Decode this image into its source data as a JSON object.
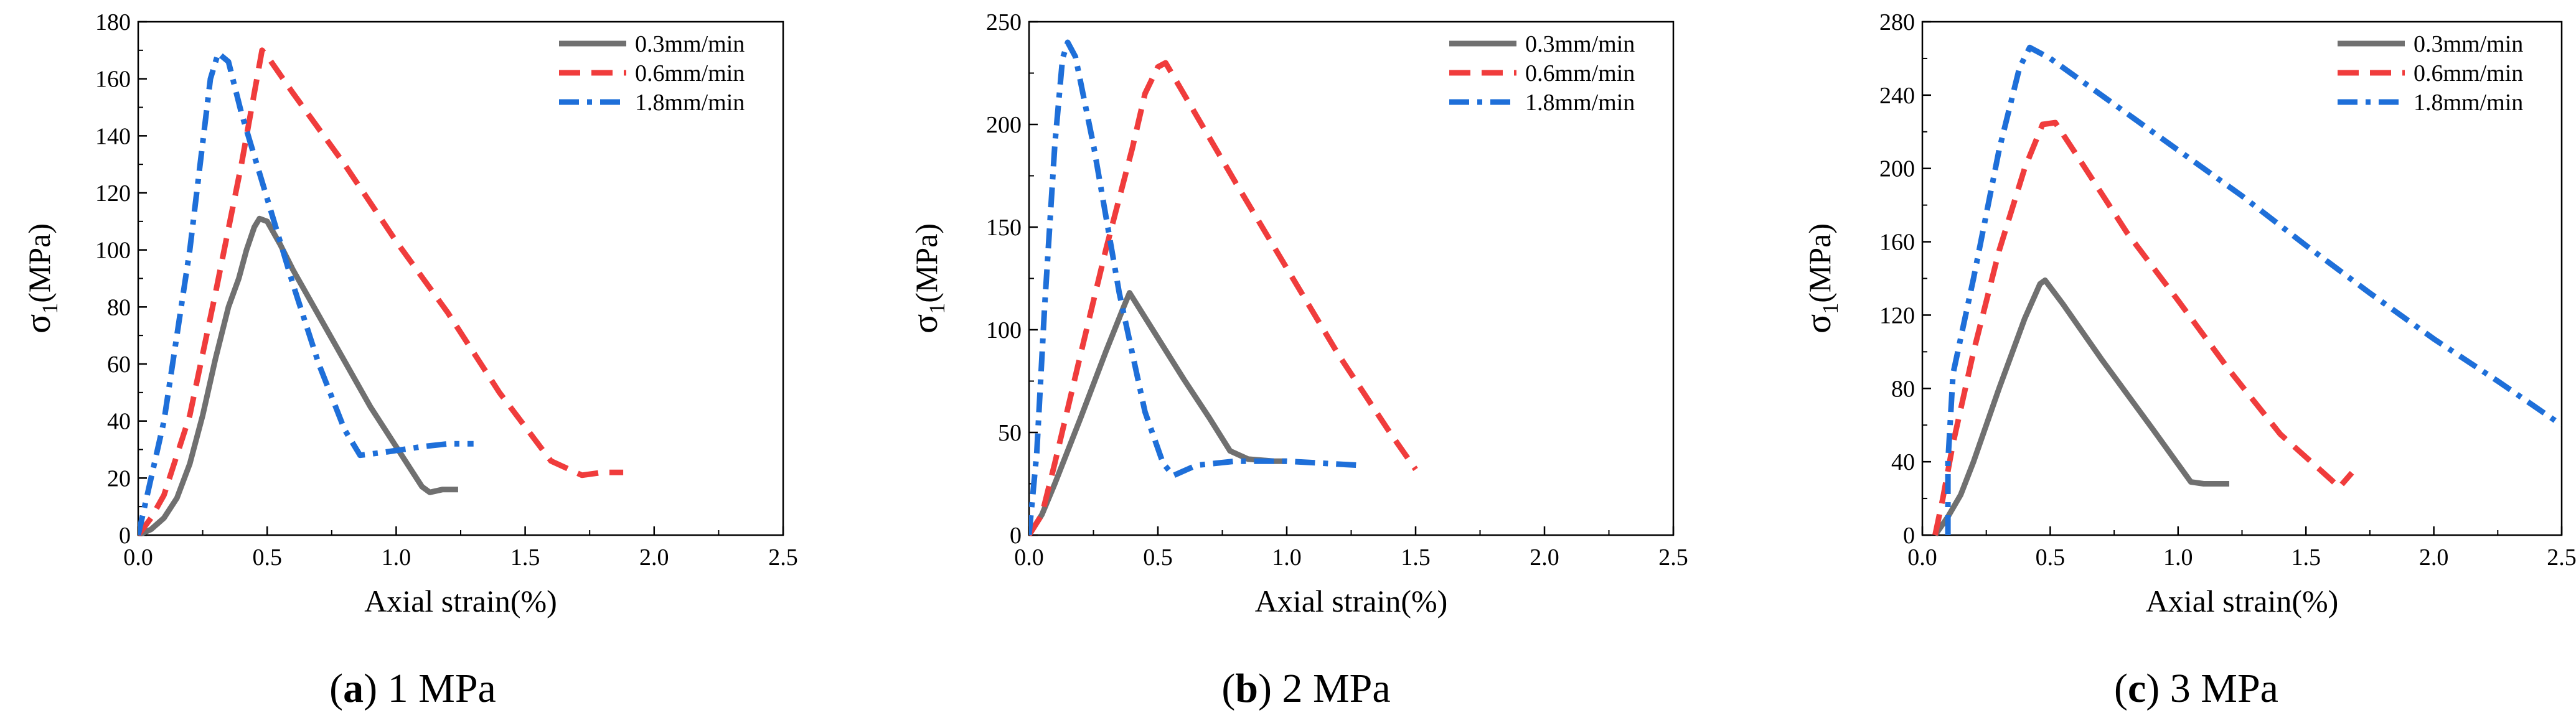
{
  "chart_data": [
    {
      "type": "line",
      "caption": {
        "letter": "a",
        "text": "1 MPa"
      },
      "xlabel": "Axial strain(%)",
      "ylabel": {
        "main": "σ",
        "sub": "1",
        "unit": "(MPa)"
      },
      "xlim": [
        0,
        2.5
      ],
      "ylim": [
        0,
        180
      ],
      "xticks": [
        0.0,
        0.5,
        1.0,
        1.5,
        2.0,
        2.5
      ],
      "xtick_labels": [
        "0.0",
        "0.5",
        "1.0",
        "1.5",
        "2.0",
        "2.5"
      ],
      "yticks": [
        0,
        20,
        40,
        60,
        80,
        100,
        120,
        140,
        160,
        180
      ],
      "ytick_labels": [
        "0",
        "20",
        "40",
        "60",
        "80",
        "100",
        "120",
        "140",
        "160",
        "180"
      ],
      "legend_position": "top-right",
      "series": [
        {
          "name": "0.3mm/min",
          "color": "#707070",
          "style": "solid",
          "points": [
            [
              0.0,
              0
            ],
            [
              0.05,
              2
            ],
            [
              0.1,
              6
            ],
            [
              0.15,
              13
            ],
            [
              0.2,
              25
            ],
            [
              0.25,
              42
            ],
            [
              0.3,
              62
            ],
            [
              0.35,
              80
            ],
            [
              0.39,
              90
            ],
            [
              0.42,
              100
            ],
            [
              0.45,
              108
            ],
            [
              0.47,
              111
            ],
            [
              0.5,
              110
            ],
            [
              0.55,
              102
            ],
            [
              0.6,
              93
            ],
            [
              0.7,
              77
            ],
            [
              0.8,
              61
            ],
            [
              0.9,
              45
            ],
            [
              1.0,
              31
            ],
            [
              1.1,
              17
            ],
            [
              1.13,
              15
            ],
            [
              1.18,
              16
            ],
            [
              1.24,
              16
            ]
          ]
        },
        {
          "name": "0.6mm/min",
          "color": "#f03c3c",
          "style": "dashed",
          "points": [
            [
              0.0,
              0
            ],
            [
              0.05,
              6
            ],
            [
              0.1,
              14
            ],
            [
              0.2,
              42
            ],
            [
              0.3,
              85
            ],
            [
              0.4,
              130
            ],
            [
              0.45,
              155
            ],
            [
              0.48,
              170
            ],
            [
              0.5,
              168
            ],
            [
              0.6,
              155
            ],
            [
              0.8,
              130
            ],
            [
              1.0,
              103
            ],
            [
              1.2,
              78
            ],
            [
              1.4,
              50
            ],
            [
              1.6,
              26
            ],
            [
              1.72,
              21
            ],
            [
              1.8,
              22
            ],
            [
              1.88,
              22
            ]
          ]
        },
        {
          "name": "1.8mm/min",
          "color": "#1e6fd9",
          "style": "dashdot",
          "points": [
            [
              0.0,
              0
            ],
            [
              0.03,
              12
            ],
            [
              0.1,
              40
            ],
            [
              0.2,
              100
            ],
            [
              0.28,
              160
            ],
            [
              0.31,
              169
            ],
            [
              0.35,
              166
            ],
            [
              0.4,
              148
            ],
            [
              0.5,
              118
            ],
            [
              0.6,
              88
            ],
            [
              0.7,
              60
            ],
            [
              0.8,
              37
            ],
            [
              0.86,
              28
            ],
            [
              0.95,
              29
            ],
            [
              1.1,
              31
            ],
            [
              1.2,
              32
            ],
            [
              1.3,
              32
            ]
          ]
        }
      ]
    },
    {
      "type": "line",
      "caption": {
        "letter": "b",
        "text": "2 MPa"
      },
      "xlabel": "Axial strain(%)",
      "ylabel": {
        "main": "σ",
        "sub": "1",
        "unit": "(MPa)"
      },
      "xlim": [
        0,
        2.5
      ],
      "ylim": [
        0,
        250
      ],
      "xticks": [
        0.0,
        0.5,
        1.0,
        1.5,
        2.0,
        2.5
      ],
      "xtick_labels": [
        "0.0",
        "0.5",
        "1.0",
        "1.5",
        "2.0",
        "2.5"
      ],
      "yticks": [
        0,
        50,
        100,
        150,
        200,
        250
      ],
      "ytick_labels": [
        "0",
        "50",
        "100",
        "150",
        "200",
        "250"
      ],
      "legend_position": "top-right",
      "series": [
        {
          "name": "0.3mm/min",
          "color": "#707070",
          "style": "solid",
          "points": [
            [
              0.0,
              0
            ],
            [
              0.05,
              10
            ],
            [
              0.1,
              25
            ],
            [
              0.2,
              57
            ],
            [
              0.3,
              90
            ],
            [
              0.37,
              112
            ],
            [
              0.39,
              118
            ],
            [
              0.42,
              112
            ],
            [
              0.5,
              96
            ],
            [
              0.6,
              76
            ],
            [
              0.7,
              57
            ],
            [
              0.78,
              41
            ],
            [
              0.85,
              37
            ],
            [
              0.95,
              36
            ],
            [
              1.0,
              36
            ]
          ]
        },
        {
          "name": "0.6mm/min",
          "color": "#f03c3c",
          "style": "dashed",
          "points": [
            [
              0.0,
              0
            ],
            [
              0.05,
              10
            ],
            [
              0.1,
              35
            ],
            [
              0.2,
              88
            ],
            [
              0.3,
              140
            ],
            [
              0.4,
              188
            ],
            [
              0.45,
              215
            ],
            [
              0.5,
              228
            ],
            [
              0.53,
              230
            ],
            [
              0.6,
              215
            ],
            [
              0.8,
              172
            ],
            [
              1.0,
              130
            ],
            [
              1.2,
              88
            ],
            [
              1.4,
              50
            ],
            [
              1.5,
              32
            ]
          ]
        },
        {
          "name": "1.8mm/min",
          "color": "#1e6fd9",
          "style": "dashdot",
          "points": [
            [
              0.0,
              0
            ],
            [
              0.03,
              40
            ],
            [
              0.06,
              110
            ],
            [
              0.1,
              190
            ],
            [
              0.13,
              232
            ],
            [
              0.15,
              240
            ],
            [
              0.18,
              233
            ],
            [
              0.25,
              190
            ],
            [
              0.35,
              118
            ],
            [
              0.45,
              60
            ],
            [
              0.52,
              35
            ],
            [
              0.56,
              29
            ],
            [
              0.65,
              34
            ],
            [
              0.8,
              36
            ],
            [
              1.0,
              36
            ],
            [
              1.28,
              34
            ]
          ]
        }
      ]
    },
    {
      "type": "line",
      "caption": {
        "letter": "c",
        "text": "3 MPa"
      },
      "xlabel": "Axial strain(%)",
      "ylabel": {
        "main": "σ",
        "sub": "1",
        "unit": "(MPa)"
      },
      "xlim": [
        0,
        2.5
      ],
      "ylim": [
        0,
        280
      ],
      "xticks": [
        0.0,
        0.5,
        1.0,
        1.5,
        2.0,
        2.5
      ],
      "xtick_labels": [
        "0.0",
        "0.5",
        "1.0",
        "1.5",
        "2.0",
        "2.5"
      ],
      "yticks": [
        0,
        40,
        80,
        120,
        160,
        200,
        240,
        280
      ],
      "ytick_labels": [
        "0",
        "40",
        "80",
        "120",
        "160",
        "200",
        "240",
        "280"
      ],
      "legend_position": "top-right",
      "series": [
        {
          "name": "0.3mm/min",
          "color": "#707070",
          "style": "solid",
          "points": [
            [
              0.05,
              0
            ],
            [
              0.1,
              10
            ],
            [
              0.15,
              22
            ],
            [
              0.2,
              40
            ],
            [
              0.3,
              80
            ],
            [
              0.4,
              118
            ],
            [
              0.46,
              137
            ],
            [
              0.48,
              139
            ],
            [
              0.55,
              126
            ],
            [
              0.7,
              96
            ],
            [
              0.9,
              58
            ],
            [
              1.05,
              29
            ],
            [
              1.1,
              28
            ],
            [
              1.2,
              28
            ]
          ]
        },
        {
          "name": "0.6mm/min",
          "color": "#f03c3c",
          "style": "dashed",
          "points": [
            [
              0.05,
              0
            ],
            [
              0.08,
              20
            ],
            [
              0.12,
              50
            ],
            [
              0.2,
              100
            ],
            [
              0.3,
              155
            ],
            [
              0.4,
              200
            ],
            [
              0.47,
              224
            ],
            [
              0.52,
              225
            ],
            [
              0.6,
              208
            ],
            [
              0.8,
              165
            ],
            [
              1.0,
              128
            ],
            [
              1.2,
              90
            ],
            [
              1.4,
              55
            ],
            [
              1.6,
              30
            ],
            [
              1.63,
              26
            ],
            [
              1.68,
              34
            ]
          ]
        },
        {
          "name": "1.8mm/min",
          "color": "#1e6fd9",
          "style": "dashdot",
          "points": [
            [
              0.1,
              0
            ],
            [
              0.1,
              40
            ],
            [
              0.12,
              88
            ],
            [
              0.2,
              140
            ],
            [
              0.3,
              210
            ],
            [
              0.38,
              255
            ],
            [
              0.42,
              266
            ],
            [
              0.5,
              260
            ],
            [
              0.75,
              235
            ],
            [
              1.0,
              210
            ],
            [
              1.25,
              185
            ],
            [
              1.5,
              158
            ],
            [
              1.75,
              132
            ],
            [
              2.0,
              107
            ],
            [
              2.25,
              84
            ],
            [
              2.5,
              60
            ]
          ]
        }
      ]
    }
  ]
}
